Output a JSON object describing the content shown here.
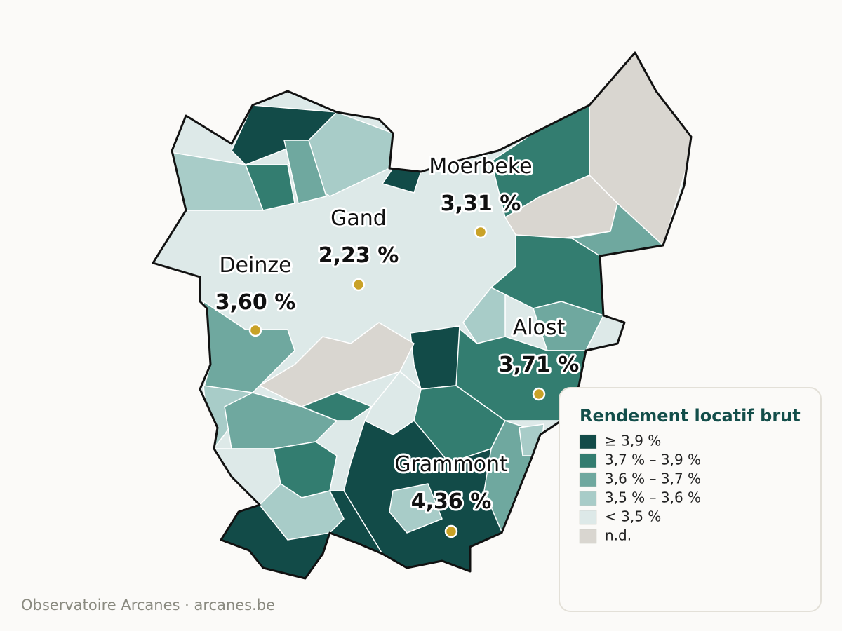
{
  "map": {
    "cities": [
      {
        "name": "Moerbeke",
        "value": "3,31 %"
      },
      {
        "name": "Gand",
        "value": "2,23 %"
      },
      {
        "name": "Deinze",
        "value": "3,60 %"
      },
      {
        "name": "Alost",
        "value": "3,71 %"
      },
      {
        "name": "Grammont",
        "value": "4,36 %"
      }
    ],
    "legend": {
      "title": "Rendement locatif brut",
      "items": [
        {
          "label": "≥ 3,9 %",
          "color": "#124b48"
        },
        {
          "label": "3,7 % – 3,9 %",
          "color": "#337d70"
        },
        {
          "label": "3,6 % – 3,7 %",
          "color": "#6fa89f"
        },
        {
          "label": "3,5 % – 3,6 %",
          "color": "#a8ccc8"
        },
        {
          "label": "< 3,5 %",
          "color": "#dde9e8"
        },
        {
          "label": "n.d.",
          "color": "#d9d6d0"
        }
      ]
    },
    "footer": "Observatoire Arcanes · arcanes.be"
  }
}
